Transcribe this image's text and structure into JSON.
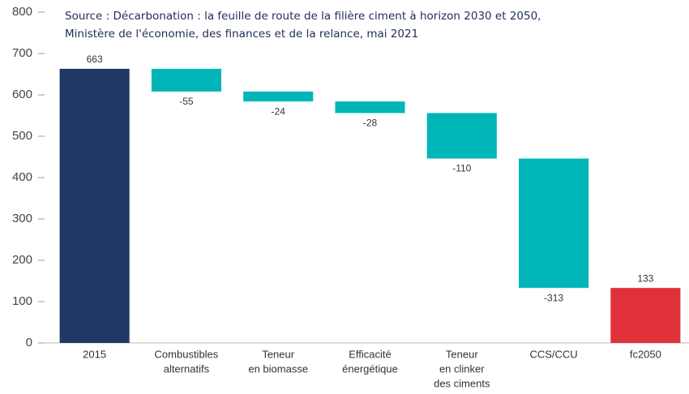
{
  "chart_data": {
    "type": "waterfall",
    "source": [
      "Source : Décarbonation : la feuille de route de la filière ciment à horizon 2030 et 2050,",
      "Ministère de l'économie, des finances et de la relance, mai 2021"
    ],
    "categories": [
      [
        "2015"
      ],
      [
        "Combustibles",
        "alternatifs"
      ],
      [
        "Teneur",
        "en biomasse"
      ],
      [
        "Efficacité",
        "énergétique"
      ],
      [
        "Teneur",
        "en clinker",
        "des ciments"
      ],
      [
        "CCS/CCU"
      ],
      [
        "fc2050"
      ]
    ],
    "values": [
      663,
      -55,
      -24,
      -28,
      -110,
      -313,
      133
    ],
    "measure": [
      "absolute",
      "relative",
      "relative",
      "relative",
      "relative",
      "relative",
      "absolute"
    ],
    "colors": [
      "#1f3864",
      "#00b5b8",
      "#00b5b8",
      "#00b5b8",
      "#00b5b8",
      "#00b5b8",
      "#e0313a"
    ],
    "ylim": [
      0,
      800
    ],
    "yticks": [
      0,
      100,
      200,
      300,
      400,
      500,
      600,
      700,
      800
    ],
    "grid": false
  }
}
